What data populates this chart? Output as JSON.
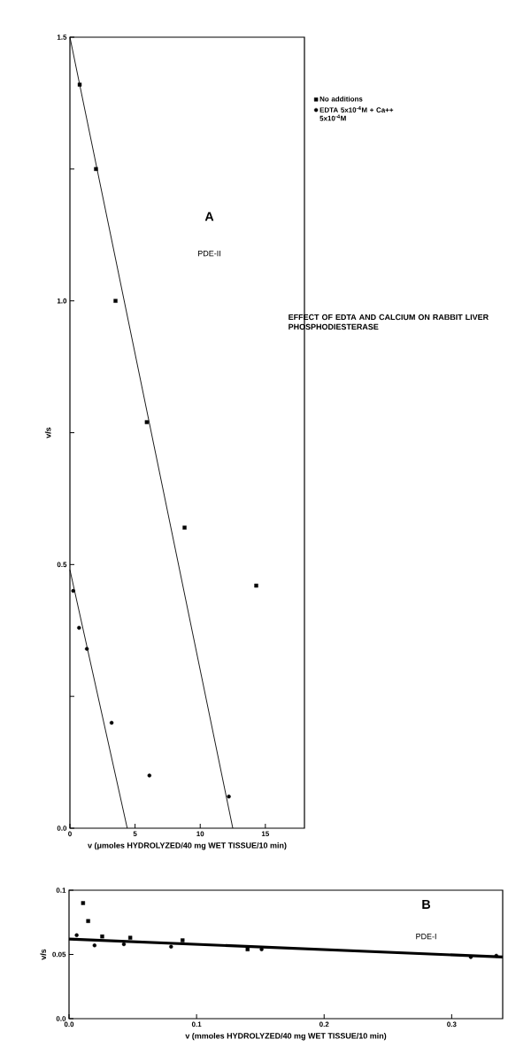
{
  "chart_data": [
    {
      "type": "scatter",
      "title": "EFFECT OF EDTA AND CALCIUM ON RABBIT LIVER PHOSPHODIESTERASE",
      "xlabel": "v (μmoles HYDROLYZED/40 mg WET TISSUE/10 min)",
      "ylabel": "v/s",
      "annotations": [
        "A",
        "PDE-II"
      ],
      "xlim": [
        0,
        18
      ],
      "ylim": [
        0,
        1.5
      ],
      "xticks": [
        0,
        5,
        10,
        15
      ],
      "yticks": [
        {
          "value": 0,
          "label": "0.0"
        },
        {
          "value": 0.25,
          "label": null
        },
        {
          "value": 0.5,
          "label": "0.5"
        },
        {
          "value": 0.75,
          "label": null
        },
        {
          "value": 1.0,
          "label": "1.0"
        },
        {
          "value": 1.25,
          "label": null
        },
        {
          "value": 1.5,
          "label": "1.5"
        }
      ],
      "legend": "right",
      "series": [
        {
          "name": "No additions",
          "marker": "square",
          "color": "#000000",
          "x": [
            0.75,
            2.0,
            3.5,
            5.9,
            8.8,
            14.3
          ],
          "values": [
            1.41,
            1.25,
            1.0,
            0.77,
            0.57,
            0.46
          ]
        },
        {
          "name": "EDTA 5x10$^{-4}$M + Ca++ 5x10$^{-4}$M",
          "marker": "circle",
          "color": "#000000",
          "x": [
            0.25,
            0.7,
            1.3,
            3.2,
            6.1,
            12.2
          ],
          "values": [
            0.45,
            0.38,
            0.34,
            0.2,
            0.1,
            0.06
          ]
        },
        {
          "type": "line",
          "color": "#000000",
          "x": [
            0,
            12.5
          ],
          "values": [
            1.5,
            0
          ]
        },
        {
          "type": "line",
          "color": "#000000",
          "x": [
            0,
            4.4
          ],
          "values": [
            0.49,
            0
          ]
        }
      ]
    },
    {
      "type": "scatter",
      "xlabel": "v (mmoles HYDROLYZED/40 mg WET TISSUE/10 min)",
      "ylabel": "v/s",
      "annotations": [
        "B",
        "PDE-I"
      ],
      "xlim": [
        0,
        0.34
      ],
      "ylim": [
        0,
        0.1
      ],
      "xticks": [
        {
          "value": 0,
          "label": "0.0"
        },
        0.1,
        0.2,
        0.3
      ],
      "yticks": [
        {
          "value": 0,
          "label": "0.0"
        },
        0.05,
        0.1
      ],
      "series": [
        {
          "marker": "square",
          "color": "#000000",
          "x": [
            0.011,
            0.015,
            0.026,
            0.048,
            0.089,
            0.14
          ],
          "values": [
            0.09,
            0.076,
            0.064,
            0.063,
            0.061,
            0.054
          ]
        },
        {
          "marker": "circle",
          "color": "#000000",
          "x": [
            0.006,
            0.02,
            0.043,
            0.08,
            0.151,
            0.315,
            0.335
          ],
          "values": [
            0.065,
            0.057,
            0.058,
            0.056,
            0.054,
            0.048,
            0.049
          ]
        },
        {
          "type": "line",
          "color": "#000000",
          "x": [
            0,
            0.34
          ],
          "values": [
            0.062,
            0.048
          ]
        }
      ]
    }
  ]
}
